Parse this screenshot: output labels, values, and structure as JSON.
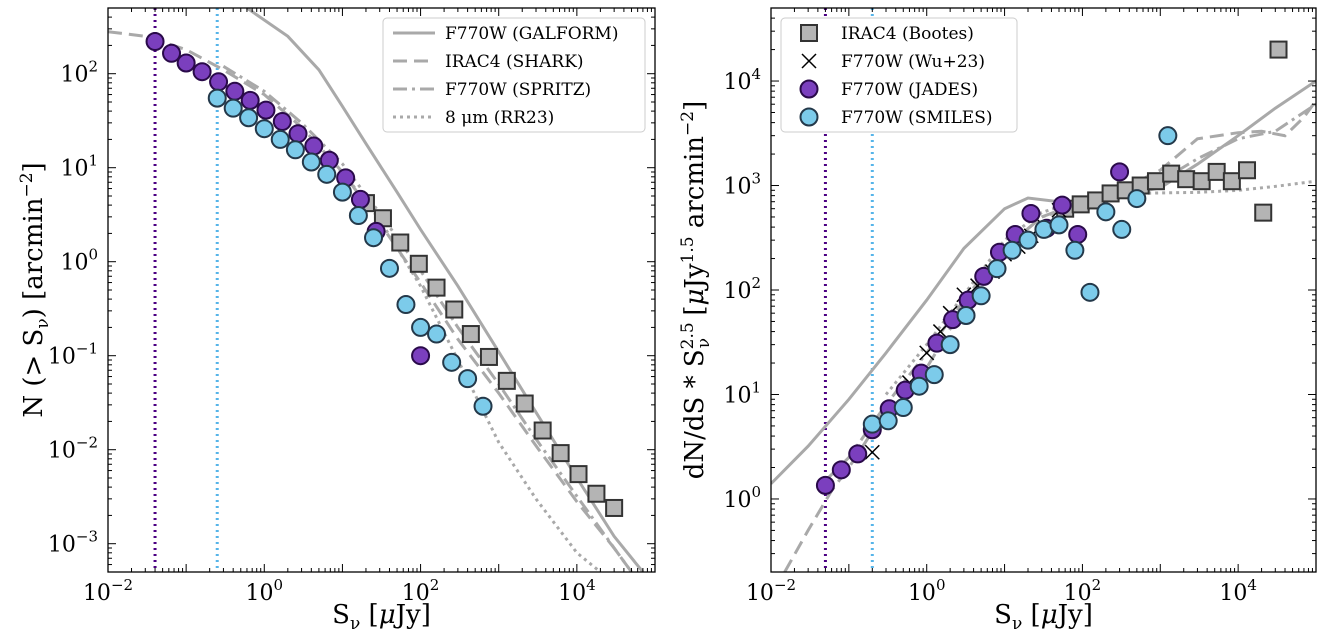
{
  "chart_data": [
    {
      "type": "line",
      "xscale": "log",
      "yscale": "log",
      "xlim": [
        0.01,
        100000
      ],
      "ylim": [
        0.0005,
        500
      ],
      "xlabel": "S_ν [μJy]",
      "ylabel": "N (> S_ν) [arcmin^-2]",
      "xticks": [
        {
          "v": 0.01,
          "m": "10",
          "e": "−2"
        },
        {
          "v": 1,
          "m": "10",
          "e": "0"
        },
        {
          "v": 100,
          "m": "10",
          "e": "2"
        },
        {
          "v": 10000,
          "m": "10",
          "e": "4"
        }
      ],
      "yticks": [
        {
          "v": 0.001,
          "m": "10",
          "e": "−3"
        },
        {
          "v": 0.01,
          "m": "10",
          "e": "−2"
        },
        {
          "v": 0.1,
          "m": "10",
          "e": "−1"
        },
        {
          "v": 1,
          "m": "10",
          "e": "0"
        },
        {
          "v": 10,
          "m": "10",
          "e": "1"
        },
        {
          "v": 100,
          "m": "10",
          "e": "2"
        }
      ],
      "vlines": [
        {
          "x": 0.04,
          "color": "#4b0082"
        },
        {
          "x": 0.25,
          "color": "#56b4e9"
        }
      ],
      "legend": [
        "F770W (GALFORM)",
        "IRAC4 (SHARK)",
        "F770W (SPRITZ)",
        "8 μm (RR23)"
      ],
      "legend_loc": "upper right",
      "models": [
        {
          "name": "F770W (GALFORM)",
          "style": "solid",
          "x": [
            0.6,
            2,
            5,
            10,
            20,
            50,
            100,
            300,
            1000,
            3000,
            10000,
            30000,
            70000
          ],
          "y": [
            500,
            250,
            110,
            45,
            18,
            5.5,
            2.2,
            0.55,
            0.11,
            0.025,
            0.005,
            0.0012,
            0.0005
          ]
        },
        {
          "name": "IRAC4 (SHARK)",
          "style": "dashed",
          "x": [
            0.01,
            0.03,
            0.1,
            0.3,
            1,
            3,
            10,
            30,
            100,
            300,
            1000,
            3000,
            10000,
            30000,
            50000
          ],
          "y": [
            280,
            250,
            180,
            110,
            60,
            27,
            9,
            2.6,
            0.6,
            0.15,
            0.04,
            0.011,
            0.0028,
            0.0009,
            0.0005
          ]
        },
        {
          "name": "F770W (SPRITZ)",
          "style": "dashdot",
          "x": [
            0.3,
            1,
            3,
            10,
            30,
            100,
            300,
            1000,
            3000,
            10000,
            30000,
            50000
          ],
          "y": [
            120,
            65,
            30,
            11,
            3.3,
            0.8,
            0.2,
            0.05,
            0.013,
            0.0032,
            0.0009,
            0.0005
          ]
        },
        {
          "name": "8 μm (RR23)",
          "style": "dotted",
          "x": [
            1,
            3,
            10,
            30,
            100,
            300,
            1000,
            3000,
            10000,
            20000
          ],
          "y": [
            45,
            22,
            9,
            2.8,
            0.55,
            0.09,
            0.012,
            0.003,
            0.0008,
            0.0005
          ]
        }
      ],
      "series": [
        {
          "name": "IRAC4 (Bootes)",
          "marker": "square",
          "x": [
            20,
            33,
            55,
            95,
            160,
            270,
            440,
            750,
            1270,
            2150,
            3650,
            6200,
            10500,
            17800,
            30000
          ],
          "y": [
            4.2,
            2.9,
            1.6,
            0.95,
            0.53,
            0.31,
            0.17,
            0.097,
            0.054,
            0.031,
            0.016,
            0.0092,
            0.0055,
            0.0034,
            0.0024
          ]
        },
        {
          "name": "F770W (JADES)",
          "marker": "circle",
          "x": [
            0.04,
            0.065,
            0.1,
            0.16,
            0.26,
            0.42,
            0.66,
            1.05,
            1.7,
            2.7,
            4.3,
            6.8,
            11,
            17,
            27,
            100
          ],
          "y": [
            220,
            165,
            130,
            105,
            82,
            65,
            52,
            41,
            31,
            23,
            17,
            12,
            7.8,
            4.6,
            2.1,
            0.1
          ]
        },
        {
          "name": "F770W (SMILES)",
          "marker": "circle",
          "x": [
            0.25,
            0.4,
            0.63,
            1,
            1.6,
            2.5,
            4,
            6.3,
            10,
            16,
            25,
            40,
            65,
            100,
            160,
            250,
            400,
            630
          ],
          "y": [
            55,
            43,
            34,
            26,
            20,
            15.5,
            11.5,
            8.5,
            5.5,
            3.1,
            1.8,
            0.85,
            0.35,
            0.2,
            0.17,
            0.085,
            0.057,
            0.029
          ]
        }
      ]
    },
    {
      "type": "scatter",
      "xscale": "log",
      "yscale": "log",
      "xlim": [
        0.01,
        100000
      ],
      "ylim": [
        0.2,
        50000
      ],
      "xlabel": "S_ν [μJy]",
      "ylabel": "dN/dS * S_ν^2.5 [μJy^1.5 arcmin^-2]",
      "xticks": [
        {
          "v": 0.01,
          "m": "10",
          "e": "−2"
        },
        {
          "v": 1,
          "m": "10",
          "e": "0"
        },
        {
          "v": 100,
          "m": "10",
          "e": "2"
        },
        {
          "v": 10000,
          "m": "10",
          "e": "4"
        }
      ],
      "yticks": [
        {
          "v": 1,
          "m": "10",
          "e": "0"
        },
        {
          "v": 10,
          "m": "10",
          "e": "1"
        },
        {
          "v": 100,
          "m": "10",
          "e": "2"
        },
        {
          "v": 1000,
          "m": "10",
          "e": "3"
        },
        {
          "v": 10000,
          "m": "10",
          "e": "4"
        }
      ],
      "vlines": [
        {
          "x": 0.05,
          "color": "#4b0082"
        },
        {
          "x": 0.2,
          "color": "#56b4e9"
        }
      ],
      "legend": [
        "IRAC4 (Bootes)",
        "F770W (Wu+23)",
        "F770W (JADES)",
        "F770W (SMILES)"
      ],
      "legend_loc": "upper left",
      "models": [
        {
          "name": "F770W (GALFORM)",
          "style": "solid",
          "x": [
            0.01,
            0.03,
            0.1,
            0.3,
            1,
            3,
            10,
            20,
            50,
            100,
            300,
            1000,
            3000,
            10000,
            30000,
            100000
          ],
          "y": [
            1.4,
            3.2,
            9,
            25,
            80,
            250,
            600,
            760,
            700,
            700,
            800,
            950,
            1600,
            3000,
            5500,
            10000
          ]
        },
        {
          "name": "IRAC4 (SHARK)",
          "style": "dashed",
          "x": [
            0.015,
            0.03,
            0.06,
            0.1,
            0.3,
            1,
            3,
            10,
            30,
            100,
            300,
            1000,
            3000,
            10000,
            20000,
            40000,
            70000,
            100000
          ],
          "y": [
            0.2,
            0.5,
            1.2,
            2,
            7,
            18,
            70,
            250,
            500,
            700,
            900,
            1400,
            2800,
            3200,
            3300,
            3000,
            4500,
            6500
          ]
        },
        {
          "name": "F770W (SPRITZ)",
          "style": "dashdot",
          "x": [
            0.05,
            0.1,
            0.3,
            1,
            3,
            10,
            30,
            100,
            300,
            1000,
            3000,
            10000,
            30000,
            100000
          ],
          "y": [
            1.5,
            2.5,
            8,
            25,
            80,
            250,
            500,
            650,
            900,
            1100,
            1800,
            2800,
            3300,
            6000
          ]
        },
        {
          "name": "8 μm (RR23)",
          "style": "dotted",
          "x": [
            0.3,
            1,
            3,
            10,
            30,
            100,
            300,
            1000,
            3000,
            10000,
            30000,
            100000
          ],
          "y": [
            10,
            30,
            90,
            300,
            550,
            750,
            830,
            850,
            860,
            900,
            980,
            1100
          ]
        }
      ],
      "series": [
        {
          "name": "IRAC4 (Bootes)",
          "marker": "square",
          "x": [
            60,
            95,
            150,
            230,
            360,
            560,
            880,
            1380,
            2150,
            3400,
            5300,
            8300,
            13000,
            21000,
            33000
          ],
          "y": [
            600,
            660,
            720,
            840,
            900,
            1000,
            1100,
            1300,
            1150,
            1100,
            1350,
            1100,
            1400,
            550,
            20000
          ]
        },
        {
          "name": "F770W (Wu+23)",
          "marker": "x",
          "x": [
            0.2,
            0.6,
            1.0,
            1.5,
            2,
            3,
            4.5,
            7,
            10,
            15,
            22,
            33,
            50
          ],
          "y": [
            2.8,
            13,
            25,
            40,
            60,
            90,
            110,
            150,
            220,
            260,
            330,
            400,
            580
          ]
        },
        {
          "name": "F770W (JADES)",
          "marker": "circle",
          "x": [
            0.05,
            0.08,
            0.13,
            0.2,
            0.33,
            0.53,
            0.85,
            1.35,
            2.15,
            3.4,
            5.4,
            8.6,
            13.7,
            21.8,
            34.7,
            55,
            87,
            300
          ],
          "y": [
            1.35,
            1.9,
            2.7,
            4.6,
            7.3,
            11,
            16,
            31,
            52,
            80,
            135,
            230,
            340,
            540,
            390,
            650,
            340,
            1350
          ]
        },
        {
          "name": "F770W (SMILES)",
          "marker": "circle",
          "x": [
            0.2,
            0.32,
            0.5,
            0.8,
            1.25,
            2,
            3.2,
            5,
            8,
            12.5,
            20,
            32,
            50,
            80,
            125,
            200,
            320,
            500,
            1250
          ],
          "y": [
            5.2,
            5.6,
            7.5,
            12,
            15.5,
            30,
            57,
            88,
            160,
            240,
            300,
            380,
            420,
            240,
            95,
            560,
            380,
            750,
            3000
          ]
        }
      ]
    }
  ]
}
